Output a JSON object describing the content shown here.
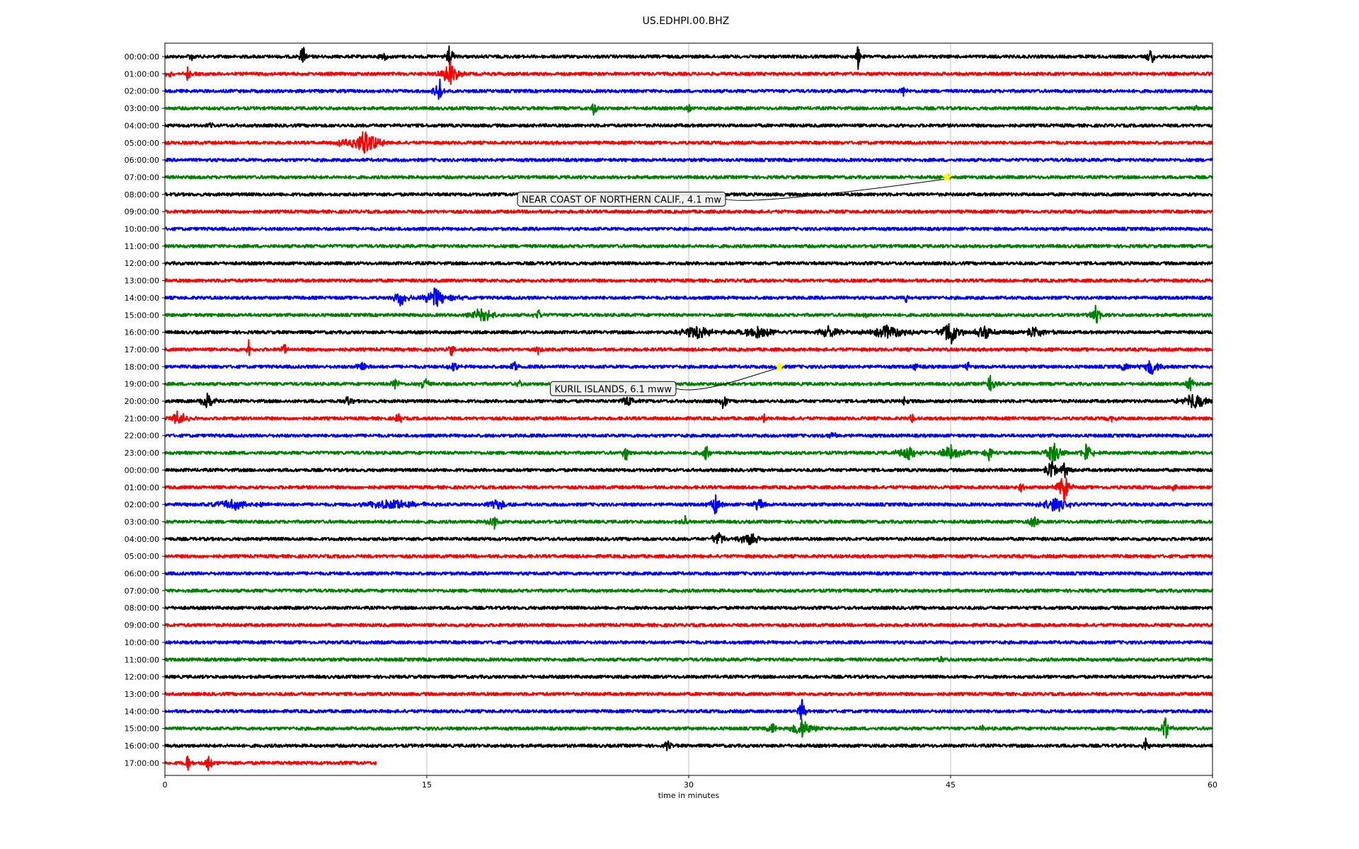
{
  "chart_data": {
    "type": "line",
    "title": "US.EDHPI.00.BHZ",
    "xlabel": "time in minutes",
    "ylabel": "",
    "xlim": [
      0,
      60
    ],
    "x_ticks": [
      0,
      15,
      30,
      45,
      60
    ],
    "x_tick_labels": [
      "0",
      "15",
      "30",
      "45",
      "60"
    ],
    "grid": "vertical lines at x ticks",
    "trace_colors": [
      "#000000",
      "#ff0000",
      "#0000ff",
      "#008000"
    ],
    "row_labels": [
      "00:00:00",
      "01:00:00",
      "02:00:00",
      "03:00:00",
      "04:00:00",
      "05:00:00",
      "06:00:00",
      "07:00:00",
      "08:00:00",
      "09:00:00",
      "10:00:00",
      "11:00:00",
      "12:00:00",
      "13:00:00",
      "14:00:00",
      "15:00:00",
      "16:00:00",
      "17:00:00",
      "18:00:00",
      "19:00:00",
      "20:00:00",
      "21:00:00",
      "22:00:00",
      "23:00:00",
      "00:00:00",
      "01:00:00",
      "02:00:00",
      "03:00:00",
      "04:00:00",
      "05:00:00",
      "06:00:00",
      "07:00:00",
      "08:00:00",
      "09:00:00",
      "10:00:00",
      "11:00:00",
      "12:00:00",
      "13:00:00",
      "14:00:00",
      "15:00:00",
      "16:00:00",
      "17:00:00"
    ],
    "last_row_end_minute": 12.1,
    "events": [
      {
        "label": "NEAR COAST OF NORTHERN CALIF., 4.1 mw",
        "row": 7,
        "minute": 44.8,
        "marker_color": "#ffff00"
      },
      {
        "label": "KURIL ISLANDS, 6.1 mww",
        "row": 18,
        "minute": 35.2,
        "marker_color": "#ffff00"
      }
    ],
    "bursts": [
      {
        "row": 0,
        "minute": 1.5,
        "amp": 0.3,
        "width": 0.4
      },
      {
        "row": 0,
        "minute": 7.9,
        "amp": 0.8,
        "width": 0.3
      },
      {
        "row": 0,
        "minute": 12.5,
        "amp": 0.25,
        "width": 0.5
      },
      {
        "row": 0,
        "minute": 16.3,
        "amp": 0.6,
        "width": 0.4
      },
      {
        "row": 0,
        "minute": 39.7,
        "amp": 0.8,
        "width": 0.2
      },
      {
        "row": 0,
        "minute": 56.5,
        "amp": 0.4,
        "width": 0.8
      },
      {
        "row": 1,
        "minute": 0.3,
        "amp": 0.3,
        "width": 0.4
      },
      {
        "row": 1,
        "minute": 1.3,
        "amp": 0.4,
        "width": 0.3
      },
      {
        "row": 1,
        "minute": 16.3,
        "amp": 0.8,
        "width": 0.9
      },
      {
        "row": 2,
        "minute": 15.7,
        "amp": 0.7,
        "width": 0.5
      },
      {
        "row": 2,
        "minute": 42.3,
        "amp": 0.3,
        "width": 0.3
      },
      {
        "row": 3,
        "minute": 24.6,
        "amp": 0.45,
        "width": 0.3
      },
      {
        "row": 3,
        "minute": 30.0,
        "amp": 0.25,
        "width": 0.3
      },
      {
        "row": 3,
        "minute": 59.0,
        "amp": 0.2,
        "width": 0.3
      },
      {
        "row": 4,
        "minute": 2.6,
        "amp": 0.15,
        "width": 0.3
      },
      {
        "row": 5,
        "minute": 10.0,
        "amp": 0.25,
        "width": 0.4
      },
      {
        "row": 5,
        "minute": 11.5,
        "amp": 0.7,
        "width": 1.6
      },
      {
        "row": 7,
        "minute": 44.8,
        "amp": 0.1,
        "width": 0.4
      },
      {
        "row": 14,
        "minute": 13.5,
        "amp": 0.4,
        "width": 0.8
      },
      {
        "row": 14,
        "minute": 15.5,
        "amp": 0.5,
        "width": 1.8
      },
      {
        "row": 14,
        "minute": 42.5,
        "amp": 0.3,
        "width": 0.4
      },
      {
        "row": 15,
        "minute": 18.2,
        "amp": 0.45,
        "width": 1.2
      },
      {
        "row": 15,
        "minute": 21.4,
        "amp": 0.3,
        "width": 0.4
      },
      {
        "row": 15,
        "minute": 40.3,
        "amp": 0.15,
        "width": 0.8
      },
      {
        "row": 15,
        "minute": 53.3,
        "amp": 0.5,
        "width": 0.6
      },
      {
        "row": 16,
        "minute": 30.5,
        "amp": 0.35,
        "width": 2.2
      },
      {
        "row": 16,
        "minute": 34.0,
        "amp": 0.35,
        "width": 2.5
      },
      {
        "row": 16,
        "minute": 38.0,
        "amp": 0.3,
        "width": 1.5
      },
      {
        "row": 16,
        "minute": 41.5,
        "amp": 0.4,
        "width": 2.2
      },
      {
        "row": 16,
        "minute": 45.0,
        "amp": 0.8,
        "width": 1.0
      },
      {
        "row": 16,
        "minute": 47.0,
        "amp": 0.35,
        "width": 1.5
      },
      {
        "row": 16,
        "minute": 49.8,
        "amp": 0.3,
        "width": 1.6
      },
      {
        "row": 17,
        "minute": 4.8,
        "amp": 0.5,
        "width": 0.2
      },
      {
        "row": 17,
        "minute": 6.8,
        "amp": 0.35,
        "width": 0.4
      },
      {
        "row": 17,
        "minute": 16.4,
        "amp": 0.35,
        "width": 0.3
      },
      {
        "row": 17,
        "minute": 21.4,
        "amp": 0.3,
        "width": 0.3
      },
      {
        "row": 18,
        "minute": 11.3,
        "amp": 0.4,
        "width": 0.6
      },
      {
        "row": 18,
        "minute": 16.5,
        "amp": 0.25,
        "width": 0.6
      },
      {
        "row": 18,
        "minute": 20.0,
        "amp": 0.35,
        "width": 0.5
      },
      {
        "row": 18,
        "minute": 43.0,
        "amp": 0.35,
        "width": 0.3
      },
      {
        "row": 18,
        "minute": 46.0,
        "amp": 0.25,
        "width": 0.5
      },
      {
        "row": 18,
        "minute": 55.0,
        "amp": 0.3,
        "width": 0.5
      },
      {
        "row": 18,
        "minute": 56.5,
        "amp": 0.45,
        "width": 1.0
      },
      {
        "row": 19,
        "minute": 13.2,
        "amp": 0.35,
        "width": 0.4
      },
      {
        "row": 19,
        "minute": 14.9,
        "amp": 0.4,
        "width": 0.5
      },
      {
        "row": 19,
        "minute": 20.3,
        "amp": 0.25,
        "width": 0.4
      },
      {
        "row": 19,
        "minute": 47.3,
        "amp": 0.45,
        "width": 0.6
      },
      {
        "row": 19,
        "minute": 58.7,
        "amp": 0.4,
        "width": 0.5
      },
      {
        "row": 20,
        "minute": 2.4,
        "amp": 0.55,
        "width": 0.8
      },
      {
        "row": 20,
        "minute": 10.5,
        "amp": 0.35,
        "width": 0.4
      },
      {
        "row": 20,
        "minute": 26.5,
        "amp": 0.35,
        "width": 0.8
      },
      {
        "row": 20,
        "minute": 32.0,
        "amp": 0.7,
        "width": 0.3
      },
      {
        "row": 20,
        "minute": 42.3,
        "amp": 0.3,
        "width": 0.4
      },
      {
        "row": 20,
        "minute": 59.0,
        "amp": 0.5,
        "width": 1.4
      },
      {
        "row": 21,
        "minute": 0.8,
        "amp": 0.4,
        "width": 1.0
      },
      {
        "row": 21,
        "minute": 13.4,
        "amp": 0.45,
        "width": 0.3
      },
      {
        "row": 21,
        "minute": 34.3,
        "amp": 0.3,
        "width": 0.2
      },
      {
        "row": 21,
        "minute": 42.8,
        "amp": 0.25,
        "width": 0.3
      },
      {
        "row": 21,
        "minute": 54.2,
        "amp": 0.2,
        "width": 0.4
      },
      {
        "row": 22,
        "minute": 38.2,
        "amp": 0.2,
        "width": 0.6
      },
      {
        "row": 23,
        "minute": 26.4,
        "amp": 0.45,
        "width": 0.4
      },
      {
        "row": 23,
        "minute": 31.0,
        "amp": 0.35,
        "width": 0.5
      },
      {
        "row": 23,
        "minute": 42.5,
        "amp": 0.5,
        "width": 1.0
      },
      {
        "row": 23,
        "minute": 45.0,
        "amp": 0.35,
        "width": 1.5
      },
      {
        "row": 23,
        "minute": 47.2,
        "amp": 0.35,
        "width": 0.5
      },
      {
        "row": 23,
        "minute": 50.9,
        "amp": 0.55,
        "width": 1.0
      },
      {
        "row": 23,
        "minute": 52.8,
        "amp": 0.5,
        "width": 0.8
      },
      {
        "row": 24,
        "minute": 50.8,
        "amp": 0.6,
        "width": 0.8
      },
      {
        "row": 24,
        "minute": 51.5,
        "amp": 0.45,
        "width": 0.6
      },
      {
        "row": 25,
        "minute": 49.0,
        "amp": 0.2,
        "width": 0.5
      },
      {
        "row": 25,
        "minute": 51.5,
        "amp": 0.75,
        "width": 0.8
      },
      {
        "row": 25,
        "minute": 57.8,
        "amp": 0.25,
        "width": 0.3
      },
      {
        "row": 26,
        "minute": 4.0,
        "amp": 0.25,
        "width": 3.0
      },
      {
        "row": 26,
        "minute": 13.0,
        "amp": 0.3,
        "width": 3.0
      },
      {
        "row": 26,
        "minute": 19.0,
        "amp": 0.25,
        "width": 1.5
      },
      {
        "row": 26,
        "minute": 31.5,
        "amp": 0.55,
        "width": 0.6
      },
      {
        "row": 26,
        "minute": 34.0,
        "amp": 0.6,
        "width": 0.5
      },
      {
        "row": 26,
        "minute": 51.0,
        "amp": 0.45,
        "width": 1.5
      },
      {
        "row": 27,
        "minute": 18.8,
        "amp": 0.45,
        "width": 0.6
      },
      {
        "row": 27,
        "minute": 29.8,
        "amp": 0.3,
        "width": 0.4
      },
      {
        "row": 27,
        "minute": 49.8,
        "amp": 0.6,
        "width": 0.5
      },
      {
        "row": 28,
        "minute": 31.7,
        "amp": 0.4,
        "width": 0.8
      },
      {
        "row": 28,
        "minute": 33.5,
        "amp": 0.35,
        "width": 1.2
      },
      {
        "row": 29,
        "minute": 10.3,
        "amp": 0.1,
        "width": 0.3
      },
      {
        "row": 35,
        "minute": 44.5,
        "amp": 0.15,
        "width": 0.5
      },
      {
        "row": 38,
        "minute": 36.5,
        "amp": 0.7,
        "width": 0.4
      },
      {
        "row": 39,
        "minute": 34.8,
        "amp": 0.35,
        "width": 0.6
      },
      {
        "row": 39,
        "minute": 36.5,
        "amp": 0.5,
        "width": 1.2
      },
      {
        "row": 39,
        "minute": 46.8,
        "amp": 0.2,
        "width": 0.3
      },
      {
        "row": 39,
        "minute": 57.3,
        "amp": 0.6,
        "width": 0.5
      },
      {
        "row": 40,
        "minute": 28.8,
        "amp": 0.3,
        "width": 0.4
      },
      {
        "row": 40,
        "minute": 56.2,
        "amp": 0.5,
        "width": 0.3
      },
      {
        "row": 41,
        "minute": 1.3,
        "amp": 0.45,
        "width": 0.4
      },
      {
        "row": 41,
        "minute": 2.5,
        "amp": 0.5,
        "width": 0.5
      }
    ]
  }
}
